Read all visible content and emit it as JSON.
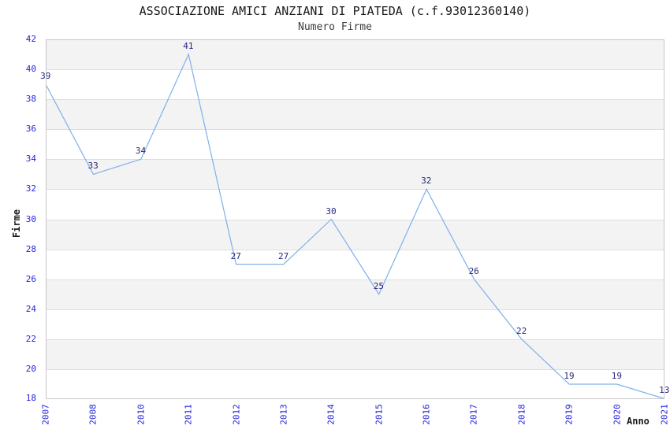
{
  "chart": {
    "title": "ASSOCIAZIONE AMICI ANZIANI DI PIATEDA (c.f.93012360140)",
    "subtitle": "Numero Firme",
    "ylabel": "Firme",
    "xlabel": "Anno"
  },
  "colors": {
    "line": "#7fb0ea",
    "tick_label": "#2222dd",
    "data_label": "#26267d",
    "band_gray": "#f3f3f3",
    "band_white": "#ffffff",
    "gridline": "#dedede",
    "plot_border": "#c6c6c6",
    "title_text": "#1a1a1a",
    "subtitle_text": "#3c3c3c"
  },
  "chart_data": {
    "type": "line",
    "title": "ASSOCIAZIONE AMICI ANZIANI DI PIATEDA (c.f.93012360140)",
    "subtitle": "Numero Firme",
    "xlabel": "Anno",
    "ylabel": "Firme",
    "categories": [
      "2007",
      "2008",
      "2010",
      "2011",
      "2012",
      "2013",
      "2014",
      "2015",
      "2016",
      "2017",
      "2018",
      "2019",
      "2020",
      "2021"
    ],
    "values": [
      39,
      33,
      34,
      41,
      27,
      27,
      30,
      25,
      32,
      26,
      22,
      19,
      19,
      13
    ],
    "ylim": [
      18,
      42
    ],
    "ytick_step": 2,
    "yticks": [
      18,
      20,
      22,
      24,
      26,
      28,
      30,
      32,
      34,
      36,
      38,
      40,
      42
    ],
    "xtick_rotation_deg": -90,
    "grid": "horizontal-bands-alternating-gray",
    "legend": "none",
    "markers": "none",
    "data_labels_shown": true,
    "clip_to_ylim": true,
    "note": "value 13 (2021) is below axis minimum 18 and is drawn clamped to the bottom axis"
  }
}
